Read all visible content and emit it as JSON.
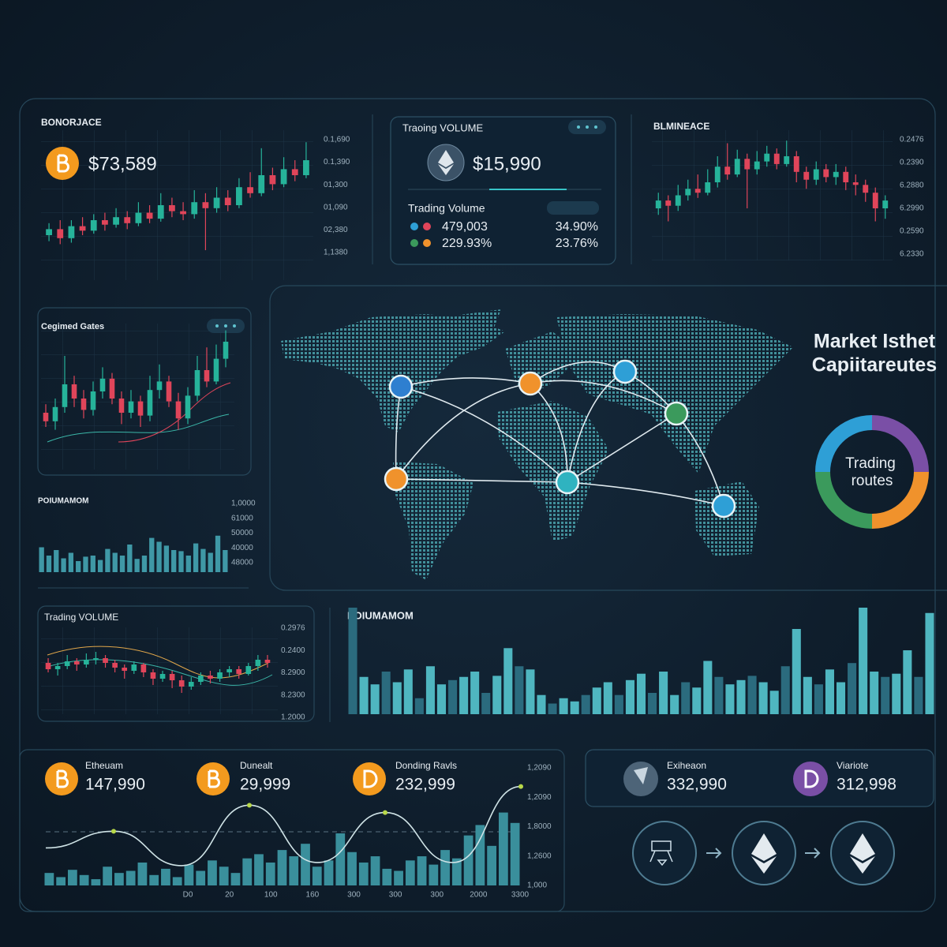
{
  "price_chart": {
    "label": "BONORJACE",
    "price": "$73,589",
    "ticks": [
      "0.1,690",
      "0.1,390",
      "01,300",
      "01,090",
      "02,380",
      "1,1380"
    ],
    "ylim": [
      0,
      100
    ],
    "candles": [
      [
        30,
        34,
        38,
        26
      ],
      [
        34,
        28,
        40,
        24
      ],
      [
        28,
        36,
        40,
        25
      ],
      [
        36,
        33,
        42,
        30
      ],
      [
        33,
        40,
        44,
        31
      ],
      [
        40,
        37,
        45,
        33
      ],
      [
        37,
        42,
        48,
        35
      ],
      [
        42,
        38,
        46,
        34
      ],
      [
        38,
        45,
        52,
        36
      ],
      [
        45,
        41,
        50,
        38
      ],
      [
        41,
        50,
        58,
        39
      ],
      [
        50,
        46,
        55,
        42
      ],
      [
        46,
        44,
        52,
        40
      ],
      [
        44,
        52,
        60,
        41
      ],
      [
        52,
        48,
        58,
        20
      ],
      [
        48,
        55,
        62,
        45
      ],
      [
        55,
        50,
        60,
        46
      ],
      [
        50,
        62,
        68,
        48
      ],
      [
        62,
        58,
        72,
        55
      ],
      [
        58,
        70,
        88,
        56
      ],
      [
        70,
        64,
        75,
        60
      ],
      [
        64,
        74,
        82,
        62
      ],
      [
        74,
        70,
        80,
        66
      ],
      [
        70,
        80,
        92,
        68
      ]
    ]
  },
  "volume_card": {
    "title": "Traοing VOLUME",
    "price": "$15,990",
    "subtitle": "Trading Volume",
    "rows": [
      [
        "479,003",
        "34.90%"
      ],
      [
        "229.93%",
        "23.76%"
      ]
    ]
  },
  "right_chart": {
    "label": "BLMINEACE",
    "ticks": [
      "0.2476",
      "0.2390",
      "6.2880",
      "6.2990",
      "0.2590",
      "6.2330"
    ],
    "ylim": [
      0,
      100
    ],
    "candles": [
      [
        40,
        46,
        52,
        35
      ],
      [
        46,
        42,
        50,
        30
      ],
      [
        42,
        50,
        58,
        38
      ],
      [
        50,
        55,
        62,
        46
      ],
      [
        55,
        52,
        66,
        48
      ],
      [
        52,
        60,
        70,
        50
      ],
      [
        60,
        72,
        80,
        56
      ],
      [
        72,
        66,
        90,
        62
      ],
      [
        66,
        78,
        85,
        64
      ],
      [
        78,
        70,
        82,
        40
      ],
      [
        70,
        76,
        84,
        66
      ],
      [
        76,
        82,
        88,
        72
      ],
      [
        82,
        74,
        86,
        70
      ],
      [
        74,
        80,
        92,
        72
      ],
      [
        80,
        68,
        84,
        60
      ],
      [
        68,
        62,
        72,
        55
      ],
      [
        62,
        70,
        76,
        58
      ],
      [
        70,
        64,
        74,
        60
      ],
      [
        64,
        68,
        74,
        58
      ],
      [
        68,
        60,
        72,
        54
      ],
      [
        60,
        58,
        66,
        50
      ],
      [
        58,
        52,
        62,
        45
      ],
      [
        52,
        40,
        56,
        30
      ],
      [
        40,
        46,
        50,
        32
      ]
    ]
  },
  "gates_chart": {
    "label": "Cegimed Gates",
    "ticks": [],
    "ylim": [
      0,
      100
    ],
    "candles": [
      [
        40,
        34,
        46,
        30
      ],
      [
        34,
        44,
        50,
        28
      ],
      [
        44,
        60,
        80,
        40
      ],
      [
        60,
        50,
        66,
        44
      ],
      [
        50,
        42,
        56,
        36
      ],
      [
        42,
        55,
        62,
        38
      ],
      [
        55,
        64,
        72,
        50
      ],
      [
        64,
        50,
        68,
        46
      ],
      [
        50,
        40,
        55,
        32
      ],
      [
        40,
        48,
        56,
        36
      ],
      [
        48,
        38,
        52,
        30
      ],
      [
        38,
        56,
        66,
        34
      ],
      [
        56,
        62,
        74,
        50
      ],
      [
        62,
        48,
        66,
        44
      ],
      [
        48,
        36,
        54,
        28
      ],
      [
        36,
        52,
        58,
        32
      ],
      [
        52,
        70,
        80,
        48
      ],
      [
        70,
        62,
        86,
        58
      ],
      [
        62,
        78,
        88,
        60
      ],
      [
        78,
        90,
        98,
        72
      ]
    ]
  },
  "small_bars": {
    "label": "POIUMAMOM",
    "ticks": [
      "1,0000",
      "61000",
      "50000",
      "40000",
      "48000"
    ],
    "ylim": [
      0,
      100
    ],
    "color": "#3f98a6",
    "values": [
      45,
      30,
      40,
      25,
      35,
      20,
      28,
      30,
      22,
      42,
      35,
      30,
      50,
      24,
      30,
      62,
      55,
      48,
      40,
      38,
      30,
      52,
      42,
      35,
      66,
      40
    ]
  },
  "map": {
    "title": [
      "Market Isthet",
      "Capiitareutes"
    ],
    "donut_label": [
      "Trading",
      "routes"
    ],
    "donut": {
      "values": [
        25,
        25,
        25,
        25
      ],
      "colors": [
        "#7a4fa6",
        "#f0922c",
        "#3b9a5c",
        "#2e9fd6"
      ]
    }
  },
  "trading_chart": {
    "label": "Trading VOLUME",
    "ticks": [
      "0.2976",
      "0.2400",
      "8.2900",
      "8.2300",
      "1.2000"
    ],
    "ylim": [
      0,
      100
    ],
    "candles": [
      [
        60,
        52,
        66,
        48
      ],
      [
        52,
        56,
        60,
        44
      ],
      [
        56,
        62,
        70,
        52
      ],
      [
        62,
        58,
        66,
        50
      ],
      [
        58,
        64,
        72,
        54
      ],
      [
        64,
        66,
        74,
        58
      ],
      [
        66,
        60,
        70,
        54
      ],
      [
        60,
        54,
        64,
        48
      ],
      [
        54,
        50,
        58,
        40
      ],
      [
        50,
        58,
        62,
        46
      ],
      [
        58,
        48,
        60,
        42
      ],
      [
        48,
        40,
        52,
        32
      ],
      [
        40,
        46,
        50,
        36
      ],
      [
        46,
        38,
        50,
        28
      ],
      [
        38,
        30,
        44,
        22
      ],
      [
        30,
        36,
        42,
        26
      ],
      [
        36,
        44,
        48,
        32
      ],
      [
        44,
        40,
        50,
        34
      ],
      [
        40,
        48,
        52,
        36
      ],
      [
        48,
        52,
        56,
        42
      ],
      [
        52,
        46,
        56,
        40
      ],
      [
        46,
        56,
        60,
        44
      ],
      [
        56,
        64,
        70,
        50
      ],
      [
        64,
        60,
        70,
        54
      ]
    ]
  },
  "big_bars": {
    "label": "POIUMAMOM",
    "ylim": [
      0,
      100
    ],
    "colors": [
      "#2b6b7e",
      "#4fb6c0"
    ],
    "values": [
      100,
      35,
      28,
      40,
      30,
      42,
      15,
      45,
      28,
      32,
      35,
      40,
      20,
      36,
      62,
      45,
      42,
      18,
      10,
      15,
      12,
      18,
      25,
      30,
      18,
      32,
      38,
      20,
      40,
      18,
      30,
      25,
      50,
      35,
      28,
      32,
      36,
      30,
      22,
      45,
      80,
      35,
      28,
      42,
      30,
      48,
      100,
      40,
      35,
      38,
      60,
      35,
      95
    ]
  },
  "coins_panel": {
    "coins": [
      {
        "name": "Etheuam",
        "value": "147,990"
      },
      {
        "name": "Dunealt",
        "value": "29,999"
      },
      {
        "name": "Donding Ravls",
        "value": "232,999"
      }
    ],
    "ticks": [
      "1,2090",
      "1,2090",
      "1,8000",
      "1,2600",
      "1,000"
    ],
    "xlabels": [
      "D0",
      "20",
      "100",
      "160",
      "300",
      "300",
      "300",
      "2000",
      "3300"
    ],
    "ylim": [
      0,
      100
    ],
    "bar_color": "#3a8f9c",
    "line_color": "#cfe3e6",
    "bars": [
      12,
      8,
      15,
      10,
      6,
      18,
      12,
      14,
      22,
      10,
      16,
      8,
      20,
      14,
      24,
      18,
      12,
      26,
      30,
      22,
      34,
      28,
      40,
      18,
      24,
      50,
      32,
      22,
      28,
      16,
      14,
      24,
      28,
      20,
      34,
      26,
      48,
      58,
      38,
      70,
      60
    ],
    "line": [
      36,
      52,
      19,
      77,
      22,
      70,
      22,
      95
    ]
  },
  "exchange_card": {
    "coins": [
      {
        "name": "Exiheaon",
        "value": "332,990"
      },
      {
        "name": "Viariote",
        "value": "312,998"
      }
    ]
  }
}
